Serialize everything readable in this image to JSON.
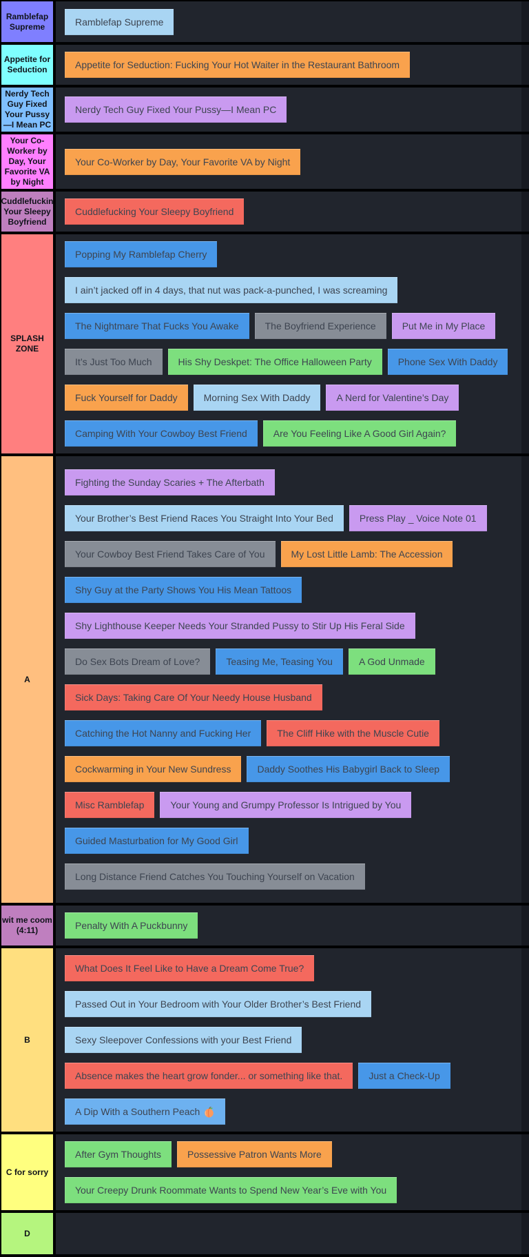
{
  "page": {
    "background": "#000000",
    "items_area_bg": "#21252d",
    "right_gutter": "#171a21",
    "item_text_color": "#3d4450",
    "label_text_color": "#10131a"
  },
  "item_colors": {
    "light_blue": "#a9d5f3",
    "blue": "#4797e8",
    "sky": "#6db1f0",
    "orange": "#f9a24d",
    "purple": "#c99af0",
    "salmon": "#f4695e",
    "gray": "#878d96",
    "green": "#7ddf7e"
  },
  "tiers": [
    {
      "label": "Ramblefap Supreme",
      "label_color": "#7f7fff",
      "rows": [
        [
          {
            "text": "Ramblefap Supreme",
            "color": "light_blue"
          }
        ]
      ]
    },
    {
      "label": "Appetite for Seduction",
      "label_color": "#7fffff",
      "rows": [
        [
          {
            "text": "Appetite for Seduction: Fucking Your Hot Waiter in the Restaurant Bathroom",
            "color": "orange"
          }
        ]
      ]
    },
    {
      "label": "Nerdy Tech Guy Fixed Your Pussy —I Mean PC",
      "label_color": "#7fbfff",
      "rows": [
        [
          {
            "text": "Nerdy Tech Guy Fixed Your Pussy—I Mean PC",
            "color": "purple"
          }
        ]
      ]
    },
    {
      "label": "Your Co-Worker by Day, Your Favorite VA by Night",
      "label_color": "#ff7fff",
      "rows": [
        [
          {
            "text": "Your Co-Worker by Day, Your Favorite VA by Night",
            "color": "orange"
          }
        ]
      ]
    },
    {
      "label": "Cuddlefuckin Your Sleepy Boyfriend",
      "label_color": "#bf7fbf",
      "rows": [
        [
          {
            "text": "Cuddlefucking Your Sleepy Boyfriend",
            "color": "salmon"
          }
        ]
      ]
    },
    {
      "label": "SPLASH ZONE",
      "label_color": "#ff7f7f",
      "rows": [
        [
          {
            "text": "Popping My Ramblefap Cherry",
            "color": "blue"
          }
        ],
        [
          {
            "text": "I ain’t jacked off in 4 days, that nut was pack-a-punched, I was screaming",
            "color": "light_blue"
          }
        ],
        [
          {
            "text": "The Nightmare That Fucks You Awake",
            "color": "blue"
          },
          {
            "text": "The Boyfriend Experience",
            "color": "gray"
          },
          {
            "text": "Put Me in My Place",
            "color": "purple"
          }
        ],
        [
          {
            "text": "It’s Just Too Much",
            "color": "gray"
          },
          {
            "text": "His Shy Deskpet: The Office Halloween Party",
            "color": "green"
          },
          {
            "text": "Phone Sex With Daddy",
            "color": "blue"
          }
        ],
        [
          {
            "text": "Fuck Yourself for Daddy",
            "color": "orange"
          },
          {
            "text": "Morning Sex With Daddy",
            "color": "light_blue"
          },
          {
            "text": "A Nerd for Valentine’s Day",
            "color": "purple"
          }
        ],
        [
          {
            "text": "Camping With Your Cowboy Best Friend",
            "color": "blue"
          },
          {
            "text": "Are You Feeling Like A Good Girl Again?",
            "color": "green"
          }
        ]
      ]
    },
    {
      "label": "A",
      "label_color": "#ffbf7f",
      "rows": [
        [
          {
            "text": "Fighting the Sunday Scaries + The Afterbath",
            "color": "purple"
          }
        ],
        [
          {
            "text": "Your Brother’s Best Friend Races You Straight Into Your Bed",
            "color": "light_blue"
          },
          {
            "text": "Press Play _ Voice Note 01",
            "color": "purple"
          }
        ],
        [
          {
            "text": "Your Cowboy Best Friend Takes Care of You",
            "color": "gray"
          },
          {
            "text": "My Lost Little Lamb: The Accession",
            "color": "orange"
          }
        ],
        [
          {
            "text": "Shy Guy at the Party Shows You His Mean Tattoos",
            "color": "blue"
          }
        ],
        [
          {
            "text": "Shy Lighthouse Keeper Needs Your Stranded Pussy to Stir Up His Feral Side",
            "color": "purple"
          }
        ],
        [
          {
            "text": "Do Sex Bots Dream of Love?",
            "color": "gray"
          },
          {
            "text": "Teasing Me, Teasing You",
            "color": "blue"
          },
          {
            "text": "A God Unmade",
            "color": "green"
          }
        ],
        [
          {
            "text": "Sick Days: Taking Care Of Your Needy House Husband",
            "color": "salmon"
          }
        ],
        [
          {
            "text": "Catching the Hot Nanny and Fucking Her",
            "color": "blue"
          },
          {
            "text": "The Cliff Hike with the Muscle Cutie",
            "color": "salmon"
          }
        ],
        [
          {
            "text": "Cockwarming in Your New Sundress",
            "color": "orange"
          },
          {
            "text": "Daddy Soothes His Babygirl Back to Sleep",
            "color": "blue"
          }
        ],
        [
          {
            "text": "Misc Ramblefap",
            "color": "salmon"
          },
          {
            "text": "Your Young and Grumpy Professor Is Intrigued by You",
            "color": "purple"
          }
        ],
        [
          {
            "text": "Guided Masturbation for My Good Girl",
            "color": "blue"
          }
        ],
        [
          {
            "text": "Long Distance Friend Catches You Touching Yourself on Vacation",
            "color": "gray"
          }
        ]
      ]
    },
    {
      "label": "wit me coom (4:11)",
      "label_color": "#bf7fbf",
      "rows": [
        [
          {
            "text": "Penalty With A Puckbunny",
            "color": "green"
          }
        ]
      ]
    },
    {
      "label": "B",
      "label_color": "#ffdf7f",
      "rows": [
        [
          {
            "text": "What Does It Feel Like to Have a Dream Come True?",
            "color": "salmon"
          }
        ],
        [
          {
            "text": "Passed Out in Your Bedroom with Your Older Brother’s Best Friend",
            "color": "light_blue"
          }
        ],
        [
          {
            "text": "Sexy Sleepover Confessions with your Best Friend",
            "color": "light_blue"
          }
        ],
        [
          {
            "text": "Absence makes the heart grow fonder... or something like that.",
            "color": "salmon"
          },
          {
            "text": "Just a Check-Up",
            "color": "blue"
          }
        ],
        [
          {
            "text": "A Dip With a Southern Peach",
            "color": "sky",
            "emoji": "peach"
          }
        ]
      ]
    },
    {
      "label": "C for sorry",
      "label_color": "#ffff7f",
      "rows": [
        [
          {
            "text": "After Gym Thoughts",
            "color": "green"
          },
          {
            "text": "Possessive Patron Wants More",
            "color": "orange"
          }
        ],
        [
          {
            "text": "Your Creepy Drunk Roommate Wants to Spend New Year’s Eve with You",
            "color": "green"
          }
        ]
      ]
    },
    {
      "label": "D",
      "label_color": "#b5f57e",
      "rows": []
    }
  ]
}
